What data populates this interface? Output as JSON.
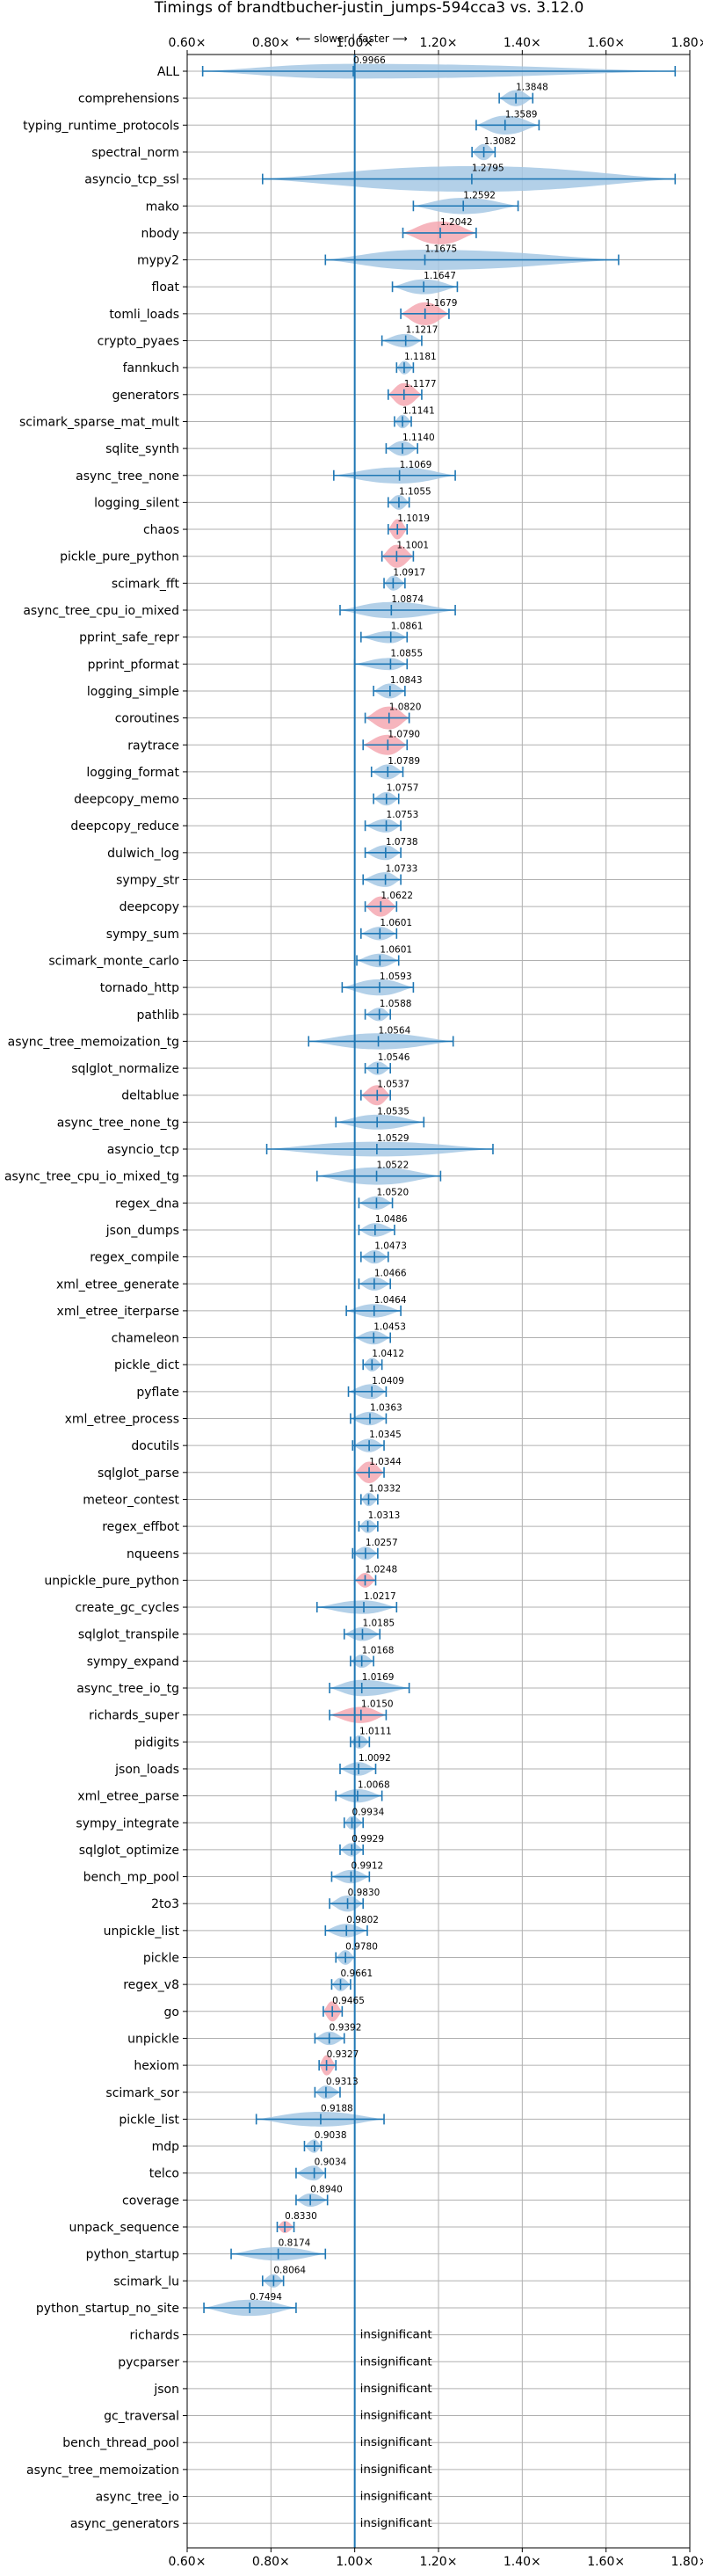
{
  "chart_data": {
    "type": "violin",
    "title": "Timings of brandtbucher-justin_jumps-594cca3 vs. 3.12.0",
    "subtitle": "⟵ slower | faster ⟶",
    "xlim": [
      0.6,
      1.8
    ],
    "xticks": [
      "0.60×",
      "0.80×",
      "1.00×",
      "1.20×",
      "1.40×",
      "1.60×",
      "1.80×"
    ],
    "xtick_values": [
      0.6,
      0.8,
      1.0,
      1.2,
      1.4,
      1.6,
      1.8
    ],
    "reference_line": 1.0,
    "grid": true,
    "colors": {
      "violin": "#a6c8e4",
      "highlight": "#f4a3ad",
      "line": "#1f77b4"
    },
    "benchmarks": [
      {
        "name": "ALL",
        "value": 0.9966,
        "label": "0.9966",
        "min": 0.637,
        "max": 1.765,
        "w": 0.55,
        "hl": false
      },
      {
        "name": "comprehensions",
        "value": 1.3848,
        "label": "1.3848",
        "min": 1.345,
        "max": 1.425,
        "w": 0.6,
        "hl": false
      },
      {
        "name": "typing_runtime_protocols",
        "value": 1.3589,
        "label": "1.3589",
        "min": 1.29,
        "max": 1.44,
        "w": 0.7,
        "hl": false
      },
      {
        "name": "spectral_norm",
        "value": 1.3082,
        "label": "1.3082",
        "min": 1.28,
        "max": 1.335,
        "w": 0.6,
        "hl": false
      },
      {
        "name": "asyncio_tcp_ssl",
        "value": 1.2795,
        "label": "1.2795",
        "min": 0.78,
        "max": 1.765,
        "w": 0.95,
        "hl": false
      },
      {
        "name": "mako",
        "value": 1.2592,
        "label": "1.2592",
        "min": 1.14,
        "max": 1.39,
        "w": 0.6,
        "hl": false
      },
      {
        "name": "nbody",
        "value": 1.2042,
        "label": "1.2042",
        "min": 1.115,
        "max": 1.29,
        "w": 0.85,
        "hl": true
      },
      {
        "name": "mypy2",
        "value": 1.1675,
        "label": "1.1675",
        "min": 0.93,
        "max": 1.63,
        "w": 0.75,
        "hl": false
      },
      {
        "name": "float",
        "value": 1.1647,
        "label": "1.1647",
        "min": 1.09,
        "max": 1.245,
        "w": 0.55,
        "hl": false
      },
      {
        "name": "tomli_loads",
        "value": 1.1679,
        "label": "1.1679",
        "min": 1.11,
        "max": 1.225,
        "w": 0.85,
        "hl": true
      },
      {
        "name": "crypto_pyaes",
        "value": 1.1217,
        "label": "1.1217",
        "min": 1.065,
        "max": 1.16,
        "w": 0.5,
        "hl": false
      },
      {
        "name": "fannkuch",
        "value": 1.1181,
        "label": "1.1181",
        "min": 1.1,
        "max": 1.14,
        "w": 0.5,
        "hl": false
      },
      {
        "name": "generators",
        "value": 1.1177,
        "label": "1.1177",
        "min": 1.08,
        "max": 1.16,
        "w": 0.85,
        "hl": true
      },
      {
        "name": "scimark_sparse_mat_mult",
        "value": 1.1141,
        "label": "1.1141",
        "min": 1.095,
        "max": 1.135,
        "w": 0.5,
        "hl": false
      },
      {
        "name": "sqlite_synth",
        "value": 1.114,
        "label": "1.1140",
        "min": 1.075,
        "max": 1.15,
        "w": 0.55,
        "hl": false
      },
      {
        "name": "async_tree_none",
        "value": 1.1069,
        "label": "1.1069",
        "min": 0.95,
        "max": 1.24,
        "w": 0.6,
        "hl": false
      },
      {
        "name": "logging_silent",
        "value": 1.1055,
        "label": "1.1055",
        "min": 1.08,
        "max": 1.13,
        "w": 0.55,
        "hl": false
      },
      {
        "name": "chaos",
        "value": 1.1019,
        "label": "1.1019",
        "min": 1.08,
        "max": 1.125,
        "w": 0.75,
        "hl": true
      },
      {
        "name": "pickle_pure_python",
        "value": 1.1001,
        "label": "1.1001",
        "min": 1.065,
        "max": 1.14,
        "w": 0.85,
        "hl": true
      },
      {
        "name": "scimark_fft",
        "value": 1.0917,
        "label": "1.0917",
        "min": 1.07,
        "max": 1.12,
        "w": 0.55,
        "hl": false
      },
      {
        "name": "async_tree_cpu_io_mixed",
        "value": 1.0874,
        "label": "1.0874",
        "min": 0.965,
        "max": 1.24,
        "w": 0.6,
        "hl": false
      },
      {
        "name": "pprint_safe_repr",
        "value": 1.0861,
        "label": "1.0861",
        "min": 1.015,
        "max": 1.125,
        "w": 0.45,
        "hl": false
      },
      {
        "name": "pprint_pformat",
        "value": 1.0855,
        "label": "1.0855",
        "min": 1.0,
        "max": 1.125,
        "w": 0.45,
        "hl": false
      },
      {
        "name": "logging_simple",
        "value": 1.0843,
        "label": "1.0843",
        "min": 1.045,
        "max": 1.12,
        "w": 0.55,
        "hl": false
      },
      {
        "name": "coroutines",
        "value": 1.082,
        "label": "1.0820",
        "min": 1.025,
        "max": 1.13,
        "w": 0.85,
        "hl": true
      },
      {
        "name": "raytrace",
        "value": 1.079,
        "label": "1.0790",
        "min": 1.02,
        "max": 1.125,
        "w": 0.75,
        "hl": true
      },
      {
        "name": "logging_format",
        "value": 1.0789,
        "label": "1.0789",
        "min": 1.04,
        "max": 1.115,
        "w": 0.55,
        "hl": false
      },
      {
        "name": "deepcopy_memo",
        "value": 1.0757,
        "label": "1.0757",
        "min": 1.045,
        "max": 1.105,
        "w": 0.5,
        "hl": false
      },
      {
        "name": "deepcopy_reduce",
        "value": 1.0753,
        "label": "1.0753",
        "min": 1.025,
        "max": 1.11,
        "w": 0.5,
        "hl": false
      },
      {
        "name": "dulwich_log",
        "value": 1.0738,
        "label": "1.0738",
        "min": 1.025,
        "max": 1.11,
        "w": 0.55,
        "hl": false
      },
      {
        "name": "sympy_str",
        "value": 1.0733,
        "label": "1.0733",
        "min": 1.02,
        "max": 1.11,
        "w": 0.55,
        "hl": false
      },
      {
        "name": "deepcopy",
        "value": 1.0622,
        "label": "1.0622",
        "min": 1.025,
        "max": 1.1,
        "w": 0.75,
        "hl": true
      },
      {
        "name": "sympy_sum",
        "value": 1.0601,
        "label": "1.0601",
        "min": 1.015,
        "max": 1.1,
        "w": 0.5,
        "hl": false
      },
      {
        "name": "scimark_monte_carlo",
        "value": 1.0601,
        "label": "1.0601",
        "min": 1.005,
        "max": 1.105,
        "w": 0.5,
        "hl": false
      },
      {
        "name": "tornado_http",
        "value": 1.0593,
        "label": "1.0593",
        "min": 0.97,
        "max": 1.14,
        "w": 0.6,
        "hl": false
      },
      {
        "name": "pathlib",
        "value": 1.0588,
        "label": "1.0588",
        "min": 1.025,
        "max": 1.085,
        "w": 0.5,
        "hl": false
      },
      {
        "name": "async_tree_memoization_tg",
        "value": 1.0564,
        "label": "1.0564",
        "min": 0.89,
        "max": 1.235,
        "w": 0.6,
        "hl": false
      },
      {
        "name": "sqlglot_normalize",
        "value": 1.0546,
        "label": "1.0546",
        "min": 1.025,
        "max": 1.085,
        "w": 0.5,
        "hl": false
      },
      {
        "name": "deltablue",
        "value": 1.0537,
        "label": "1.0537",
        "min": 1.015,
        "max": 1.085,
        "w": 0.75,
        "hl": true
      },
      {
        "name": "async_tree_none_tg",
        "value": 1.0535,
        "label": "1.0535",
        "min": 0.955,
        "max": 1.165,
        "w": 0.55,
        "hl": false
      },
      {
        "name": "asyncio_tcp",
        "value": 1.0529,
        "label": "1.0529",
        "min": 0.79,
        "max": 1.33,
        "w": 0.55,
        "hl": false
      },
      {
        "name": "async_tree_cpu_io_mixed_tg",
        "value": 1.0522,
        "label": "1.0522",
        "min": 0.91,
        "max": 1.205,
        "w": 0.65,
        "hl": false
      },
      {
        "name": "regex_dna",
        "value": 1.052,
        "label": "1.0520",
        "min": 1.01,
        "max": 1.09,
        "w": 0.5,
        "hl": false
      },
      {
        "name": "json_dumps",
        "value": 1.0486,
        "label": "1.0486",
        "min": 1.01,
        "max": 1.095,
        "w": 0.5,
        "hl": false
      },
      {
        "name": "regex_compile",
        "value": 1.0473,
        "label": "1.0473",
        "min": 1.015,
        "max": 1.08,
        "w": 0.5,
        "hl": false
      },
      {
        "name": "xml_etree_generate",
        "value": 1.0466,
        "label": "1.0466",
        "min": 1.01,
        "max": 1.085,
        "w": 0.5,
        "hl": false
      },
      {
        "name": "xml_etree_iterparse",
        "value": 1.0464,
        "label": "1.0464",
        "min": 0.98,
        "max": 1.11,
        "w": 0.5,
        "hl": false
      },
      {
        "name": "chameleon",
        "value": 1.0453,
        "label": "1.0453",
        "min": 1.0,
        "max": 1.085,
        "w": 0.5,
        "hl": false
      },
      {
        "name": "pickle_dict",
        "value": 1.0412,
        "label": "1.0412",
        "min": 1.02,
        "max": 1.065,
        "w": 0.5,
        "hl": false
      },
      {
        "name": "pyflate",
        "value": 1.0409,
        "label": "1.0409",
        "min": 0.985,
        "max": 1.075,
        "w": 0.55,
        "hl": false
      },
      {
        "name": "xml_etree_process",
        "value": 1.0363,
        "label": "1.0363",
        "min": 0.99,
        "max": 1.075,
        "w": 0.5,
        "hl": false
      },
      {
        "name": "docutils",
        "value": 1.0345,
        "label": "1.0345",
        "min": 0.995,
        "max": 1.07,
        "w": 0.5,
        "hl": false
      },
      {
        "name": "sqlglot_parse",
        "value": 1.0344,
        "label": "1.0344",
        "min": 1.0,
        "max": 1.07,
        "w": 0.8,
        "hl": true
      },
      {
        "name": "meteor_contest",
        "value": 1.0332,
        "label": "1.0332",
        "min": 1.015,
        "max": 1.055,
        "w": 0.5,
        "hl": false
      },
      {
        "name": "regex_effbot",
        "value": 1.0313,
        "label": "1.0313",
        "min": 1.01,
        "max": 1.055,
        "w": 0.5,
        "hl": false
      },
      {
        "name": "nqueens",
        "value": 1.0257,
        "label": "1.0257",
        "min": 0.995,
        "max": 1.055,
        "w": 0.5,
        "hl": false
      },
      {
        "name": "unpickle_pure_python",
        "value": 1.0248,
        "label": "1.0248",
        "min": 1.0,
        "max": 1.05,
        "w": 0.55,
        "hl": true
      },
      {
        "name": "create_gc_cycles",
        "value": 1.0217,
        "label": "1.0217",
        "min": 0.91,
        "max": 1.1,
        "w": 0.5,
        "hl": false
      },
      {
        "name": "sqlglot_transpile",
        "value": 1.0185,
        "label": "1.0185",
        "min": 0.975,
        "max": 1.06,
        "w": 0.5,
        "hl": false
      },
      {
        "name": "sympy_expand",
        "value": 1.0168,
        "label": "1.0168",
        "min": 0.99,
        "max": 1.045,
        "w": 0.5,
        "hl": false
      },
      {
        "name": "async_tree_io_tg",
        "value": 1.0169,
        "label": "1.0169",
        "min": 0.94,
        "max": 1.13,
        "w": 0.6,
        "hl": false
      },
      {
        "name": "richards_super",
        "value": 1.015,
        "label": "1.0150",
        "min": 0.94,
        "max": 1.075,
        "w": 0.6,
        "hl": true
      },
      {
        "name": "pidigits",
        "value": 1.0111,
        "label": "1.0111",
        "min": 0.99,
        "max": 1.035,
        "w": 0.5,
        "hl": false
      },
      {
        "name": "json_loads",
        "value": 1.0092,
        "label": "1.0092",
        "min": 0.965,
        "max": 1.05,
        "w": 0.5,
        "hl": false
      },
      {
        "name": "xml_etree_parse",
        "value": 1.0068,
        "label": "1.0068",
        "min": 0.955,
        "max": 1.065,
        "w": 0.5,
        "hl": false
      },
      {
        "name": "sympy_integrate",
        "value": 0.9934,
        "label": "0.9934",
        "min": 0.975,
        "max": 1.02,
        "w": 0.5,
        "hl": false
      },
      {
        "name": "sqlglot_optimize",
        "value": 0.9929,
        "label": "0.9929",
        "min": 0.965,
        "max": 1.02,
        "w": 0.5,
        "hl": false
      },
      {
        "name": "bench_mp_pool",
        "value": 0.9912,
        "label": "0.9912",
        "min": 0.945,
        "max": 1.035,
        "w": 0.5,
        "hl": false
      },
      {
        "name": "2to3",
        "value": 0.983,
        "label": "0.9830",
        "min": 0.94,
        "max": 1.02,
        "w": 0.6,
        "hl": false
      },
      {
        "name": "unpickle_list",
        "value": 0.9802,
        "label": "0.9802",
        "min": 0.93,
        "max": 1.03,
        "w": 0.5,
        "hl": false
      },
      {
        "name": "pickle",
        "value": 0.978,
        "label": "0.9780",
        "min": 0.955,
        "max": 1.0,
        "w": 0.55,
        "hl": false
      },
      {
        "name": "regex_v8",
        "value": 0.9661,
        "label": "0.9661",
        "min": 0.945,
        "max": 0.99,
        "w": 0.5,
        "hl": false
      },
      {
        "name": "go",
        "value": 0.9465,
        "label": "0.9465",
        "min": 0.925,
        "max": 0.97,
        "w": 0.75,
        "hl": true
      },
      {
        "name": "unpickle",
        "value": 0.9392,
        "label": "0.9392",
        "min": 0.905,
        "max": 0.975,
        "w": 0.5,
        "hl": false
      },
      {
        "name": "hexiom",
        "value": 0.9327,
        "label": "0.9327",
        "min": 0.915,
        "max": 0.955,
        "w": 0.75,
        "hl": true
      },
      {
        "name": "scimark_sor",
        "value": 0.9313,
        "label": "0.9313",
        "min": 0.905,
        "max": 0.965,
        "w": 0.5,
        "hl": false
      },
      {
        "name": "pickle_list",
        "value": 0.9188,
        "label": "0.9188",
        "min": 0.765,
        "max": 1.07,
        "w": 0.55,
        "hl": false
      },
      {
        "name": "mdp",
        "value": 0.9038,
        "label": "0.9038",
        "min": 0.88,
        "max": 0.92,
        "w": 0.5,
        "hl": false
      },
      {
        "name": "telco",
        "value": 0.9034,
        "label": "0.9034",
        "min": 0.86,
        "max": 0.93,
        "w": 0.55,
        "hl": false
      },
      {
        "name": "coverage",
        "value": 0.894,
        "label": "0.8940",
        "min": 0.86,
        "max": 0.935,
        "w": 0.5,
        "hl": false
      },
      {
        "name": "unpack_sequence",
        "value": 0.833,
        "label": "0.8330",
        "min": 0.815,
        "max": 0.855,
        "w": 0.45,
        "hl": true
      },
      {
        "name": "python_startup",
        "value": 0.8174,
        "label": "0.8174",
        "min": 0.705,
        "max": 0.93,
        "w": 0.5,
        "hl": false
      },
      {
        "name": "scimark_lu",
        "value": 0.8064,
        "label": "0.8064",
        "min": 0.78,
        "max": 0.83,
        "w": 0.5,
        "hl": false
      },
      {
        "name": "python_startup_no_site",
        "value": 0.7494,
        "label": "0.7494",
        "min": 0.64,
        "max": 0.86,
        "w": 0.6,
        "hl": false
      },
      {
        "name": "richards",
        "value": null,
        "label": "insignificant",
        "min": null,
        "max": null,
        "w": 0,
        "hl": false
      },
      {
        "name": "pycparser",
        "value": null,
        "label": "insignificant",
        "min": null,
        "max": null,
        "w": 0,
        "hl": false
      },
      {
        "name": "json",
        "value": null,
        "label": "insignificant",
        "min": null,
        "max": null,
        "w": 0,
        "hl": false
      },
      {
        "name": "gc_traversal",
        "value": null,
        "label": "insignificant",
        "min": null,
        "max": null,
        "w": 0,
        "hl": false
      },
      {
        "name": "bench_thread_pool",
        "value": null,
        "label": "insignificant",
        "min": null,
        "max": null,
        "w": 0,
        "hl": false
      },
      {
        "name": "async_tree_memoization",
        "value": null,
        "label": "insignificant",
        "min": null,
        "max": null,
        "w": 0,
        "hl": false
      },
      {
        "name": "async_tree_io",
        "value": null,
        "label": "insignificant",
        "min": null,
        "max": null,
        "w": 0,
        "hl": false
      },
      {
        "name": "async_generators",
        "value": null,
        "label": "insignificant",
        "min": null,
        "max": null,
        "w": 0,
        "hl": false
      }
    ]
  }
}
